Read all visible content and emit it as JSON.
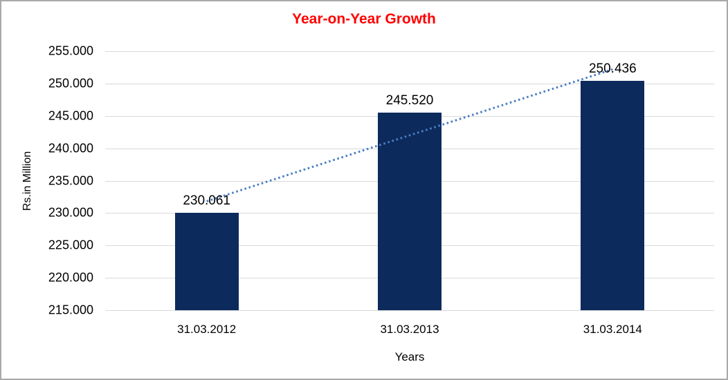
{
  "window": {
    "background": "#ffffff",
    "border_color": "#a8a8a8"
  },
  "chart_data": {
    "type": "bar",
    "title": "Year-on-Year Growth",
    "title_color": "#ff0000",
    "xlabel": "Years",
    "ylabel": "Rs.in Million",
    "categories": [
      "31.03.2012",
      "31.03.2013",
      "31.03.2014"
    ],
    "values": [
      230.061,
      245.52,
      250.436
    ],
    "data_labels": [
      "230.061",
      "245.520",
      "250.436"
    ],
    "ylim": [
      215,
      255
    ],
    "ytick_step": 5,
    "ytick_labels": [
      "215.000",
      "220.000",
      "225.000",
      "230.000",
      "235.000",
      "240.000",
      "245.000",
      "250.000",
      "255.000"
    ],
    "grid": true,
    "legend": "none",
    "bar_color": "#0d2a5c",
    "gridline_color": "#d9d9d9",
    "trendline": {
      "type": "linear",
      "style": "dotted",
      "color": "#4a7ec2"
    }
  }
}
